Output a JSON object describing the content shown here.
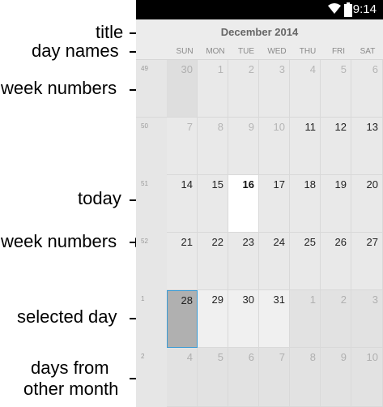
{
  "annotations": {
    "title": "title",
    "day_names": "day names",
    "week_numbers_1": "week numbers",
    "today": "today",
    "week_numbers_2": "week numbers",
    "selected_day": "selected day",
    "other_month_line1": "days from",
    "other_month_line2": "other month"
  },
  "status_bar": {
    "time": "9:14",
    "wifi": "wifi-icon",
    "battery": "battery-icon"
  },
  "calendar": {
    "title": "December 2014",
    "day_names": [
      "SUN",
      "MON",
      "TUE",
      "WED",
      "THU",
      "FRI",
      "SAT"
    ],
    "weeks": [
      {
        "week_number": "49",
        "days": [
          "30",
          "1",
          "2",
          "3",
          "4",
          "5",
          "6"
        ]
      },
      {
        "week_number": "50",
        "days": [
          "7",
          "8",
          "9",
          "10",
          "11",
          "12",
          "13"
        ]
      },
      {
        "week_number": "51",
        "days": [
          "14",
          "15",
          "16",
          "17",
          "18",
          "19",
          "20"
        ]
      },
      {
        "week_number": "52",
        "days": [
          "21",
          "22",
          "23",
          "24",
          "25",
          "26",
          "27"
        ]
      },
      {
        "week_number": "1",
        "days": [
          "28",
          "29",
          "30",
          "31",
          "1",
          "2",
          "3"
        ]
      },
      {
        "week_number": "2",
        "days": [
          "4",
          "5",
          "6",
          "7",
          "8",
          "9",
          "10"
        ]
      }
    ],
    "today": "16",
    "selected": "28"
  }
}
